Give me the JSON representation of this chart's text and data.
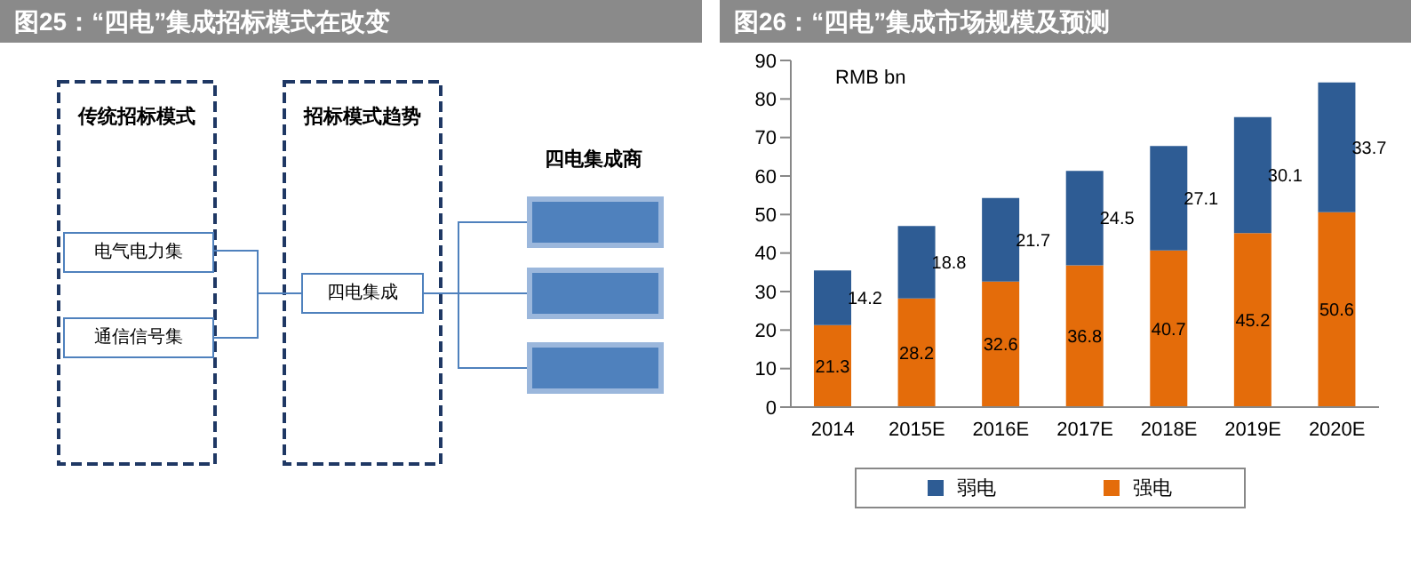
{
  "chart_data": [
    {
      "type": "other",
      "title": "图25：“四电”集成招标模式在改变",
      "annotations": [
        "传统招标模式",
        "招标模式趋势",
        "四电集成商",
        "电气电力集",
        "通信信号集",
        "四电集成"
      ]
    },
    {
      "type": "bar",
      "title": "图26：“四电”集成市场规模及预测",
      "ylabel": "RMB bn",
      "categories": [
        "2014",
        "2015E",
        "2016E",
        "2017E",
        "2018E",
        "2019E",
        "2020E"
      ],
      "stacked": true,
      "series": [
        {
          "name": "强电",
          "color": "#e46c0a",
          "values": [
            21.3,
            28.2,
            32.6,
            36.8,
            40.7,
            45.2,
            50.6
          ]
        },
        {
          "name": "弱电",
          "color": "#2e5c94",
          "values": [
            14.2,
            18.8,
            21.7,
            24.5,
            27.1,
            30.1,
            33.7
          ]
        }
      ],
      "ylim": [
        0,
        90
      ],
      "yticks": [
        0,
        10,
        20,
        30,
        40,
        50,
        60,
        70,
        80,
        90
      ],
      "data_labels": true,
      "legend": "bottom"
    }
  ]
}
